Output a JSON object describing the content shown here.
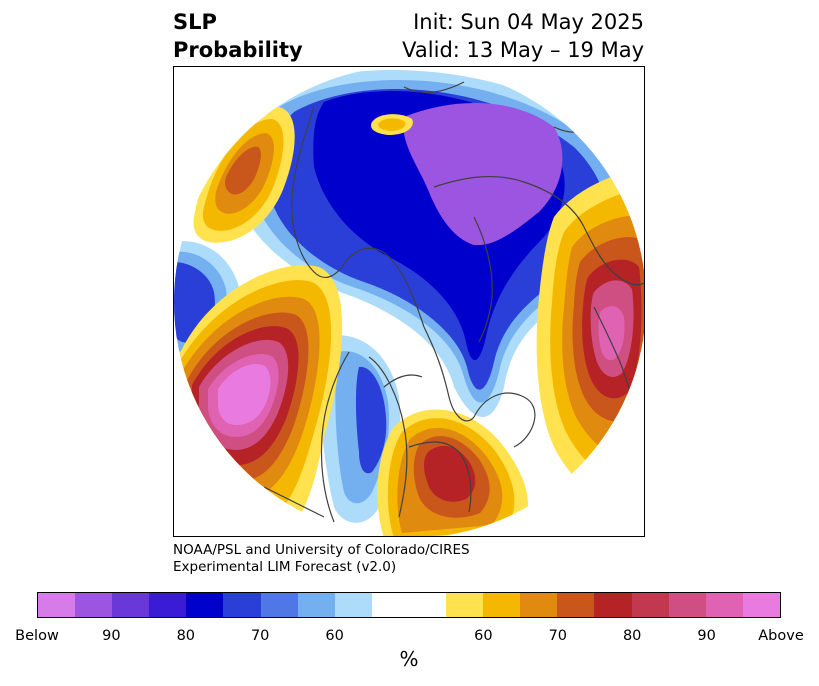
{
  "header": {
    "title_line1": "SLP",
    "title_line2": "Probability",
    "init": "Init: Sun 04 May 2025",
    "valid": "Valid: 13 May – 19 May"
  },
  "credit": {
    "line1": "NOAA/PSL and University of Colorado/CIRES",
    "line2": "Experimental LIM Forecast (v2.0)"
  },
  "colorbar": {
    "colors": [
      "#d77be8",
      "#9b55e0",
      "#6a38d9",
      "#3a1bd6",
      "#0000cc",
      "#2a3fd8",
      "#4f78e6",
      "#74b0f0",
      "#addcfb",
      "#ffffff",
      "#ffffff",
      "#ffe24d",
      "#f5b800",
      "#e08a0f",
      "#c9561a",
      "#b52326",
      "#c2384f",
      "#cf4f82",
      "#df63b2",
      "#e87ae0"
    ],
    "tick_labels": [
      "Below",
      "90",
      "80",
      "70",
      "60",
      "60",
      "70",
      "80",
      "90",
      "Above"
    ],
    "unit": "%"
  },
  "map": {
    "colors": {
      "below_light": "#addcfb",
      "below_mid": "#74b0f0",
      "below_blue": "#2a3fd8",
      "below_deep": "#0000cc",
      "below_purple": "#9b55e0",
      "above_yellow": "#ffe24d",
      "above_gold": "#f5b800",
      "above_orange": "#e08a0f",
      "above_rust": "#c9561a",
      "above_red": "#b52326",
      "above_rose": "#cf4f82",
      "above_pink": "#df63b2",
      "above_magenta": "#e87ae0",
      "coast": "#404040"
    }
  }
}
